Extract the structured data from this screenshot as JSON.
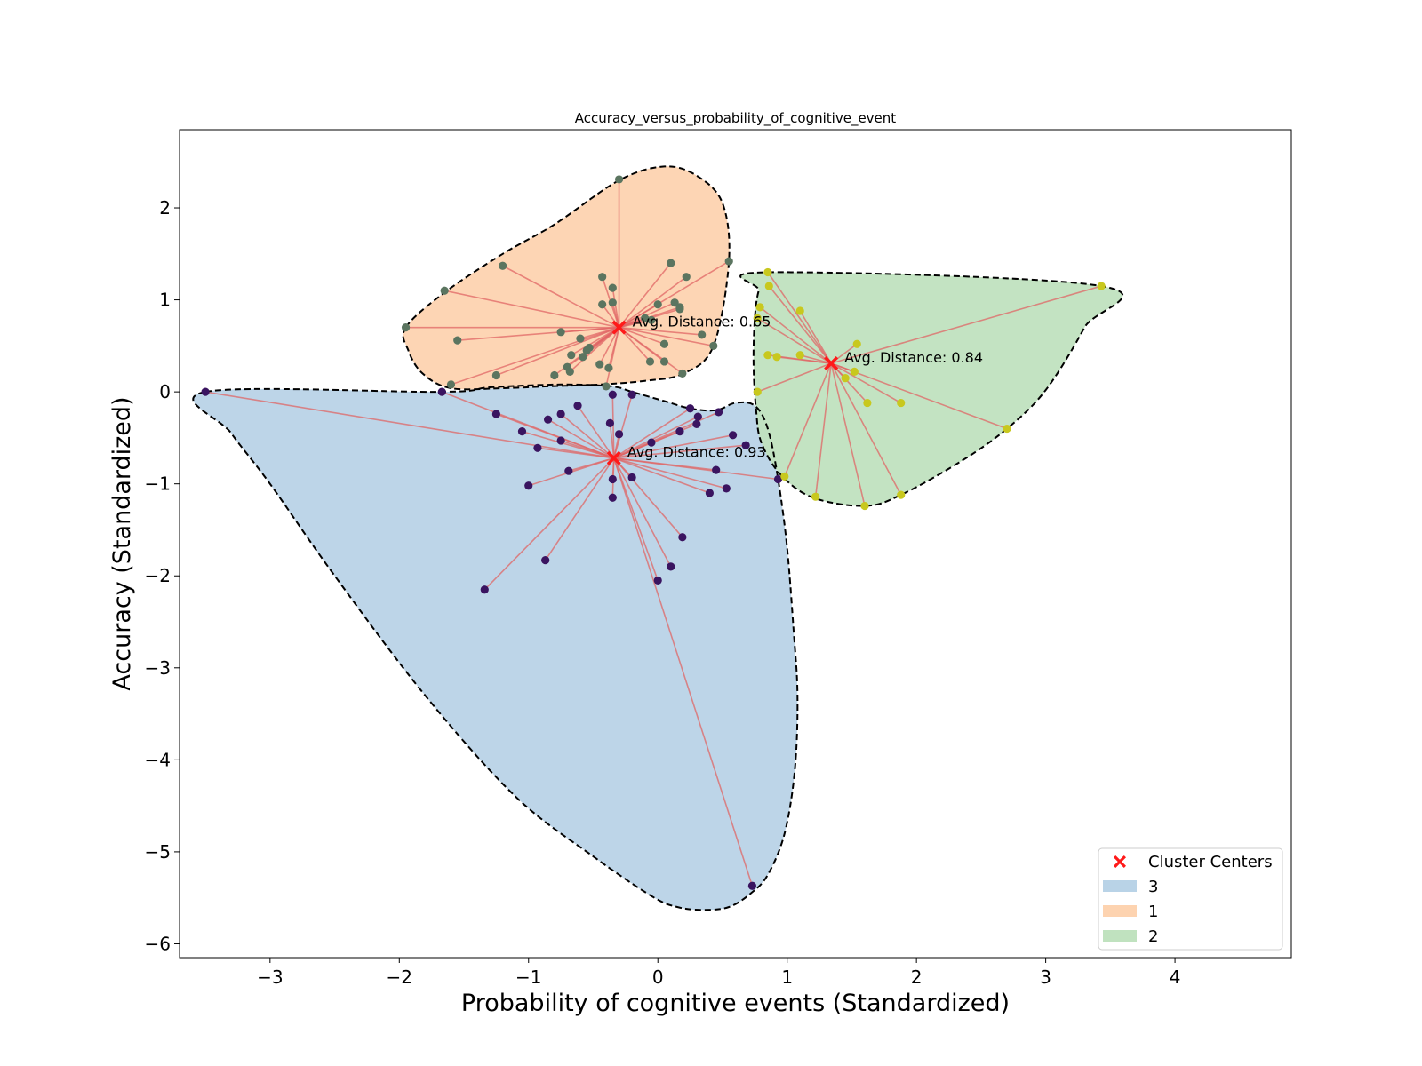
{
  "chart_data": {
    "type": "scatter",
    "title": "Accuracy_versus_probability_of_cognitive_event",
    "xlabel": "Probability of cognitive events (Standardized)",
    "ylabel": "Accuracy (Standardized)",
    "xlim": [
      -3.7,
      4.9
    ],
    "ylim": [
      -6.15,
      2.85
    ],
    "xticks": [
      -3,
      -2,
      -1,
      0,
      1,
      2,
      3,
      4
    ],
    "xtick_labels": [
      "−3",
      "−2",
      "−1",
      "0",
      "1",
      "2",
      "3",
      "4"
    ],
    "yticks": [
      2,
      1,
      0,
      -1,
      -2,
      -3,
      -4,
      -5,
      -6
    ],
    "ytick_labels": [
      "2",
      "1",
      "0",
      "−1",
      "−2",
      "−3",
      "−4",
      "−5",
      "−6"
    ],
    "grid": false,
    "legend_position": "lower-right",
    "legend": {
      "centers_label": "Cluster Centers",
      "clusters": [
        "3",
        "1",
        "2"
      ]
    },
    "colors": {
      "center_marker": "#ff1a1a",
      "spoke_line": "#e06666",
      "hull_line": "#000000"
    },
    "clusters": [
      {
        "name": "3",
        "fill": "#b9d3e7",
        "point_color": "#3a1460",
        "center": [
          -0.34,
          -0.72
        ],
        "annotation": "Avg. Distance: 0.93",
        "hull": [
          [
            -3.5,
            0.0
          ],
          [
            -1.67,
            0.0
          ],
          [
            -1.3,
            0.05
          ],
          [
            -0.75,
            0.08
          ],
          [
            -0.36,
            0.06
          ],
          [
            -0.2,
            0.0
          ],
          [
            0.05,
            -0.1
          ],
          [
            0.25,
            -0.18
          ],
          [
            0.45,
            -0.2
          ],
          [
            0.6,
            -0.12
          ],
          [
            0.75,
            -0.15
          ],
          [
            0.85,
            -0.4
          ],
          [
            0.93,
            -0.95
          ],
          [
            1.0,
            -1.7
          ],
          [
            1.05,
            -2.6
          ],
          [
            1.08,
            -3.3
          ],
          [
            1.06,
            -4.1
          ],
          [
            0.98,
            -4.8
          ],
          [
            0.85,
            -5.25
          ],
          [
            0.72,
            -5.45
          ],
          [
            0.55,
            -5.6
          ],
          [
            0.35,
            -5.63
          ],
          [
            0.15,
            -5.6
          ],
          [
            -0.05,
            -5.48
          ],
          [
            -0.5,
            -5.05
          ],
          [
            -1.1,
            -4.4
          ],
          [
            -1.8,
            -3.3
          ],
          [
            -2.5,
            -2.0
          ],
          [
            -3.0,
            -1.0
          ],
          [
            -3.3,
            -0.45
          ],
          [
            -3.5,
            0.0
          ]
        ],
        "points": [
          [
            -3.5,
            0.0
          ],
          [
            -1.67,
            0.0
          ],
          [
            -1.25,
            -0.24
          ],
          [
            -1.05,
            -0.43
          ],
          [
            -0.93,
            -0.61
          ],
          [
            -0.85,
            -0.3
          ],
          [
            -0.75,
            -0.24
          ],
          [
            -0.75,
            -0.53
          ],
          [
            -0.69,
            -0.86
          ],
          [
            -0.62,
            -0.15
          ],
          [
            -0.37,
            -0.34
          ],
          [
            -0.35,
            -0.03
          ],
          [
            -0.35,
            -0.95
          ],
          [
            -0.35,
            -1.15
          ],
          [
            -0.3,
            -0.46
          ],
          [
            -0.2,
            -0.03
          ],
          [
            -0.2,
            -0.93
          ],
          [
            -0.05,
            -0.55
          ],
          [
            0.0,
            -2.05
          ],
          [
            0.1,
            -1.9
          ],
          [
            0.17,
            -0.43
          ],
          [
            0.19,
            -1.58
          ],
          [
            0.25,
            -0.18
          ],
          [
            0.3,
            -0.35
          ],
          [
            0.31,
            -0.27
          ],
          [
            0.4,
            -1.1
          ],
          [
            0.45,
            -0.85
          ],
          [
            0.47,
            -0.22
          ],
          [
            0.53,
            -1.05
          ],
          [
            0.58,
            -0.47
          ],
          [
            0.68,
            -0.58
          ],
          [
            0.73,
            -5.37
          ],
          [
            0.93,
            -0.95
          ],
          [
            -1.0,
            -1.02
          ],
          [
            -0.87,
            -1.83
          ],
          [
            -1.34,
            -2.15
          ]
        ]
      },
      {
        "name": "1",
        "fill": "#fdd3b0",
        "point_color": "#5b7560",
        "center": [
          -0.3,
          0.7
        ],
        "annotation": "Avg. Distance: 0.65",
        "hull": [
          [
            -1.95,
            0.7
          ],
          [
            -1.65,
            1.08
          ],
          [
            -1.2,
            1.5
          ],
          [
            -0.8,
            1.82
          ],
          [
            -0.3,
            2.3
          ],
          [
            0.05,
            2.45
          ],
          [
            0.3,
            2.35
          ],
          [
            0.5,
            2.05
          ],
          [
            0.55,
            1.42
          ],
          [
            0.43,
            0.5
          ],
          [
            0.2,
            0.2
          ],
          [
            -0.1,
            0.12
          ],
          [
            -0.45,
            0.08
          ],
          [
            -0.85,
            0.06
          ],
          [
            -1.2,
            0.04
          ],
          [
            -1.6,
            0.04
          ],
          [
            -1.82,
            0.2
          ],
          [
            -1.93,
            0.45
          ],
          [
            -1.95,
            0.7
          ]
        ],
        "points": [
          [
            -1.95,
            0.7
          ],
          [
            -1.65,
            1.1
          ],
          [
            -1.55,
            0.56
          ],
          [
            -1.2,
            1.37
          ],
          [
            -1.6,
            0.08
          ],
          [
            -1.25,
            0.18
          ],
          [
            -0.8,
            0.18
          ],
          [
            -0.75,
            0.65
          ],
          [
            -0.7,
            0.27
          ],
          [
            -0.68,
            0.22
          ],
          [
            -0.67,
            0.4
          ],
          [
            -0.6,
            0.58
          ],
          [
            -0.58,
            0.38
          ],
          [
            -0.55,
            0.45
          ],
          [
            -0.53,
            0.48
          ],
          [
            -0.45,
            0.3
          ],
          [
            -0.43,
            0.95
          ],
          [
            -0.43,
            1.25
          ],
          [
            -0.4,
            0.06
          ],
          [
            -0.38,
            0.26
          ],
          [
            -0.35,
            0.97
          ],
          [
            -0.35,
            1.13
          ],
          [
            -0.3,
            2.31
          ],
          [
            -0.1,
            0.8
          ],
          [
            -0.06,
            0.33
          ],
          [
            -0.05,
            0.78
          ],
          [
            0.0,
            0.95
          ],
          [
            0.05,
            0.33
          ],
          [
            0.05,
            0.52
          ],
          [
            0.1,
            1.4
          ],
          [
            0.13,
            0.97
          ],
          [
            0.17,
            0.9
          ],
          [
            0.17,
            0.92
          ],
          [
            0.19,
            0.2
          ],
          [
            0.22,
            1.25
          ],
          [
            0.34,
            0.62
          ],
          [
            0.43,
            0.5
          ],
          [
            0.55,
            1.42
          ]
        ]
      },
      {
        "name": "2",
        "fill": "#c0e2bf",
        "point_color": "#c8c81e",
        "center": [
          1.34,
          0.31
        ],
        "annotation": "Avg. Distance: 0.84",
        "hull": [
          [
            0.85,
            1.3
          ],
          [
            3.43,
            1.15
          ],
          [
            3.3,
            0.7
          ],
          [
            3.0,
            0.02
          ],
          [
            2.7,
            -0.4
          ],
          [
            2.35,
            -0.75
          ],
          [
            1.88,
            -1.12
          ],
          [
            1.6,
            -1.24
          ],
          [
            1.2,
            -1.15
          ],
          [
            0.95,
            -0.9
          ],
          [
            0.8,
            -0.55
          ],
          [
            0.76,
            -0.2
          ],
          [
            0.74,
            0.3
          ],
          [
            0.75,
            0.8
          ],
          [
            0.78,
            1.1
          ],
          [
            0.85,
            1.3
          ]
        ],
        "points": [
          [
            0.85,
            1.3
          ],
          [
            0.86,
            1.15
          ],
          [
            0.79,
            0.92
          ],
          [
            0.77,
            0.8
          ],
          [
            0.85,
            0.4
          ],
          [
            0.92,
            0.38
          ],
          [
            0.77,
            0.0
          ],
          [
            0.98,
            -0.92
          ],
          [
            1.1,
            0.88
          ],
          [
            1.1,
            0.4
          ],
          [
            1.22,
            -1.14
          ],
          [
            1.45,
            0.15
          ],
          [
            1.52,
            0.22
          ],
          [
            1.54,
            0.52
          ],
          [
            1.6,
            -1.24
          ],
          [
            1.62,
            -0.12
          ],
          [
            1.88,
            -0.12
          ],
          [
            1.88,
            -1.12
          ],
          [
            2.7,
            -0.4
          ],
          [
            3.43,
            1.15
          ]
        ]
      }
    ]
  }
}
